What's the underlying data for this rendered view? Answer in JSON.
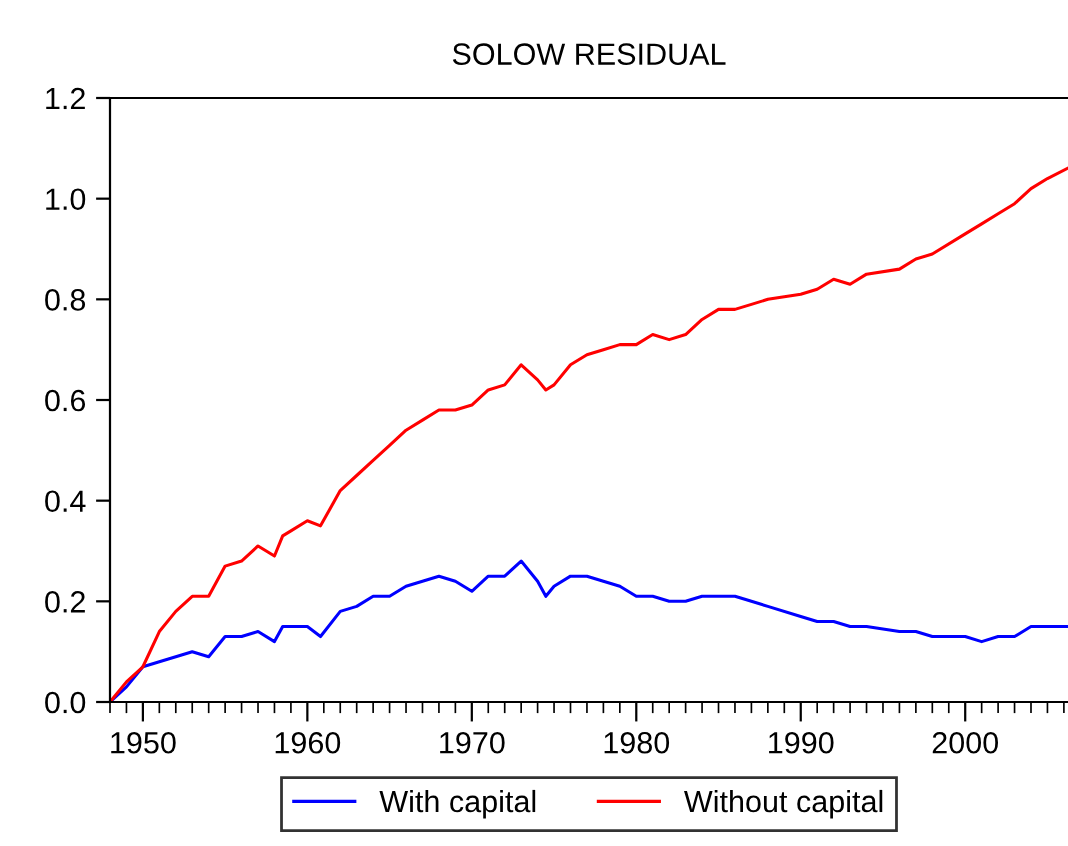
{
  "chart_data": {
    "type": "line",
    "title": "SOLOW RESIDUAL",
    "legend": "bottom",
    "grid": false,
    "marker": "none",
    "line_style": "solid",
    "xlim": [
      1948,
      2006.25
    ],
    "xticks": [
      1950,
      1960,
      1970,
      1980,
      1990,
      2000
    ],
    "ylim": [
      0,
      1.2
    ],
    "yticks": [
      {
        "value": 0,
        "label": "0.0"
      },
      {
        "value": 0.2,
        "label": "0.2"
      },
      {
        "value": 0.4,
        "label": "0.4"
      },
      {
        "value": 0.6,
        "label": "0.6"
      },
      {
        "value": 0.8,
        "label": "0.8"
      },
      {
        "value": 1.0,
        "label": "1.0"
      },
      {
        "value": 1.2,
        "label": "1.2"
      }
    ],
    "x": [
      1948,
      1949,
      1950,
      1951,
      1952,
      1953,
      1954,
      1955,
      1956,
      1957,
      1958,
      1958.5,
      1959,
      1960,
      1960.8,
      1962,
      1963,
      1964,
      1965,
      1966,
      1967,
      1968,
      1969,
      1970,
      1971,
      1972,
      1973,
      1974,
      1974.5,
      1975,
      1976,
      1977,
      1978,
      1979,
      1980,
      1981,
      1982,
      1983,
      1984,
      1985,
      1986,
      1987,
      1988,
      1990,
      1991,
      1992,
      1993,
      1994,
      1996,
      1997,
      1998,
      2000,
      2001,
      2002,
      2003,
      2004,
      2005,
      2006.2
    ],
    "series": [
      {
        "name": "With capital",
        "color": "#0000ff",
        "values": [
          0.0,
          0.03,
          0.07,
          0.08,
          0.09,
          0.1,
          0.09,
          0.13,
          0.13,
          0.14,
          0.12,
          0.15,
          0.15,
          0.15,
          0.13,
          0.18,
          0.19,
          0.21,
          0.21,
          0.23,
          0.24,
          0.25,
          0.24,
          0.22,
          0.25,
          0.25,
          0.28,
          0.24,
          0.21,
          0.23,
          0.25,
          0.25,
          0.24,
          0.23,
          0.21,
          0.21,
          0.2,
          0.2,
          0.21,
          0.21,
          0.21,
          0.2,
          0.19,
          0.17,
          0.16,
          0.16,
          0.15,
          0.15,
          0.14,
          0.14,
          0.13,
          0.13,
          0.12,
          0.13,
          0.13,
          0.15,
          0.15,
          0.15
        ]
      },
      {
        "name": "Without capital",
        "color": "#ff0000",
        "values": [
          0.0,
          0.04,
          0.07,
          0.14,
          0.18,
          0.21,
          0.21,
          0.27,
          0.28,
          0.31,
          0.29,
          0.33,
          0.34,
          0.36,
          0.35,
          0.42,
          0.45,
          0.48,
          0.51,
          0.54,
          0.56,
          0.58,
          0.58,
          0.59,
          0.62,
          0.63,
          0.67,
          0.64,
          0.62,
          0.63,
          0.67,
          0.69,
          0.7,
          0.71,
          0.71,
          0.73,
          0.72,
          0.73,
          0.76,
          0.78,
          0.78,
          0.79,
          0.8,
          0.81,
          0.82,
          0.84,
          0.83,
          0.85,
          0.86,
          0.88,
          0.89,
          0.93,
          0.95,
          0.97,
          0.99,
          1.02,
          1.04,
          1.06
        ]
      }
    ]
  }
}
